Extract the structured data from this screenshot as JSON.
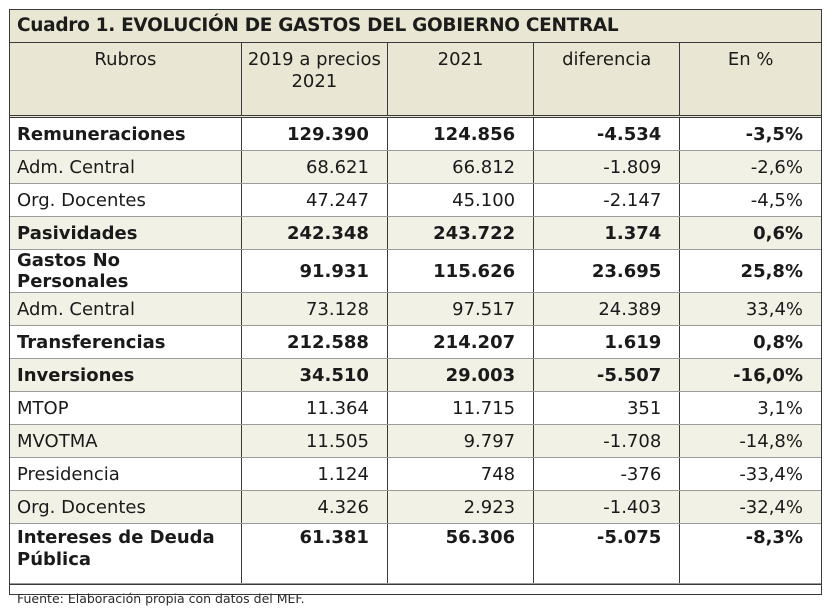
{
  "table": {
    "title": "Cuadro 1. EVOLUCIÓN DE GASTOS DEL GOBIERNO CENTRAL",
    "headers": [
      "Rubros",
      "2019 a precios 2021",
      "2021",
      "diferencia",
      "En %"
    ],
    "rows": [
      {
        "label": "Remuneraciones",
        "v2019": "129.390",
        "v2021": "124.856",
        "diff": "-4.534",
        "pct": "-3,5%"
      },
      {
        "label": "Adm. Central",
        "v2019": "68.621",
        "v2021": "66.812",
        "diff": "-1.809",
        "pct": "-2,6%"
      },
      {
        "label": "Org. Docentes",
        "v2019": "47.247",
        "v2021": "45.100",
        "diff": "-2.147",
        "pct": "-4,5%"
      },
      {
        "label": "Pasividades",
        "v2019": "242.348",
        "v2021": "243.722",
        "diff": "1.374",
        "pct": "0,6%"
      },
      {
        "label": "Gastos No Personales",
        "v2019": "91.931",
        "v2021": "115.626",
        "diff": "23.695",
        "pct": "25,8%"
      },
      {
        "label": "Adm. Central",
        "v2019": "73.128",
        "v2021": "97.517",
        "diff": "24.389",
        "pct": "33,4%"
      },
      {
        "label": "Transferencias",
        "v2019": "212.588",
        "v2021": "214.207",
        "diff": "1.619",
        "pct": "0,8%"
      },
      {
        "label": "Inversiones",
        "v2019": "34.510",
        "v2021": "29.003",
        "diff": "-5.507",
        "pct": "-16,0%"
      },
      {
        "label": "MTOP",
        "v2019": "11.364",
        "v2021": "11.715",
        "diff": "351",
        "pct": "3,1%"
      },
      {
        "label": "MVOTMA",
        "v2019": "11.505",
        "v2021": "9.797",
        "diff": "-1.708",
        "pct": "-14,8%"
      },
      {
        "label": "Presidencia",
        "v2019": "1.124",
        "v2021": "748",
        "diff": "-376",
        "pct": "-33,4%"
      },
      {
        "label": "Org. Docentes",
        "v2019": "4.326",
        "v2021": "2.923",
        "diff": "-1.403",
        "pct": "-32,4%"
      },
      {
        "label": "Intereses de Deuda Pública",
        "v2019": "61.381",
        "v2021": "56.306",
        "diff": "-5.075",
        "pct": "-8,3%"
      }
    ],
    "source": "Fuente: Elaboración propia con datos del MEF."
  }
}
